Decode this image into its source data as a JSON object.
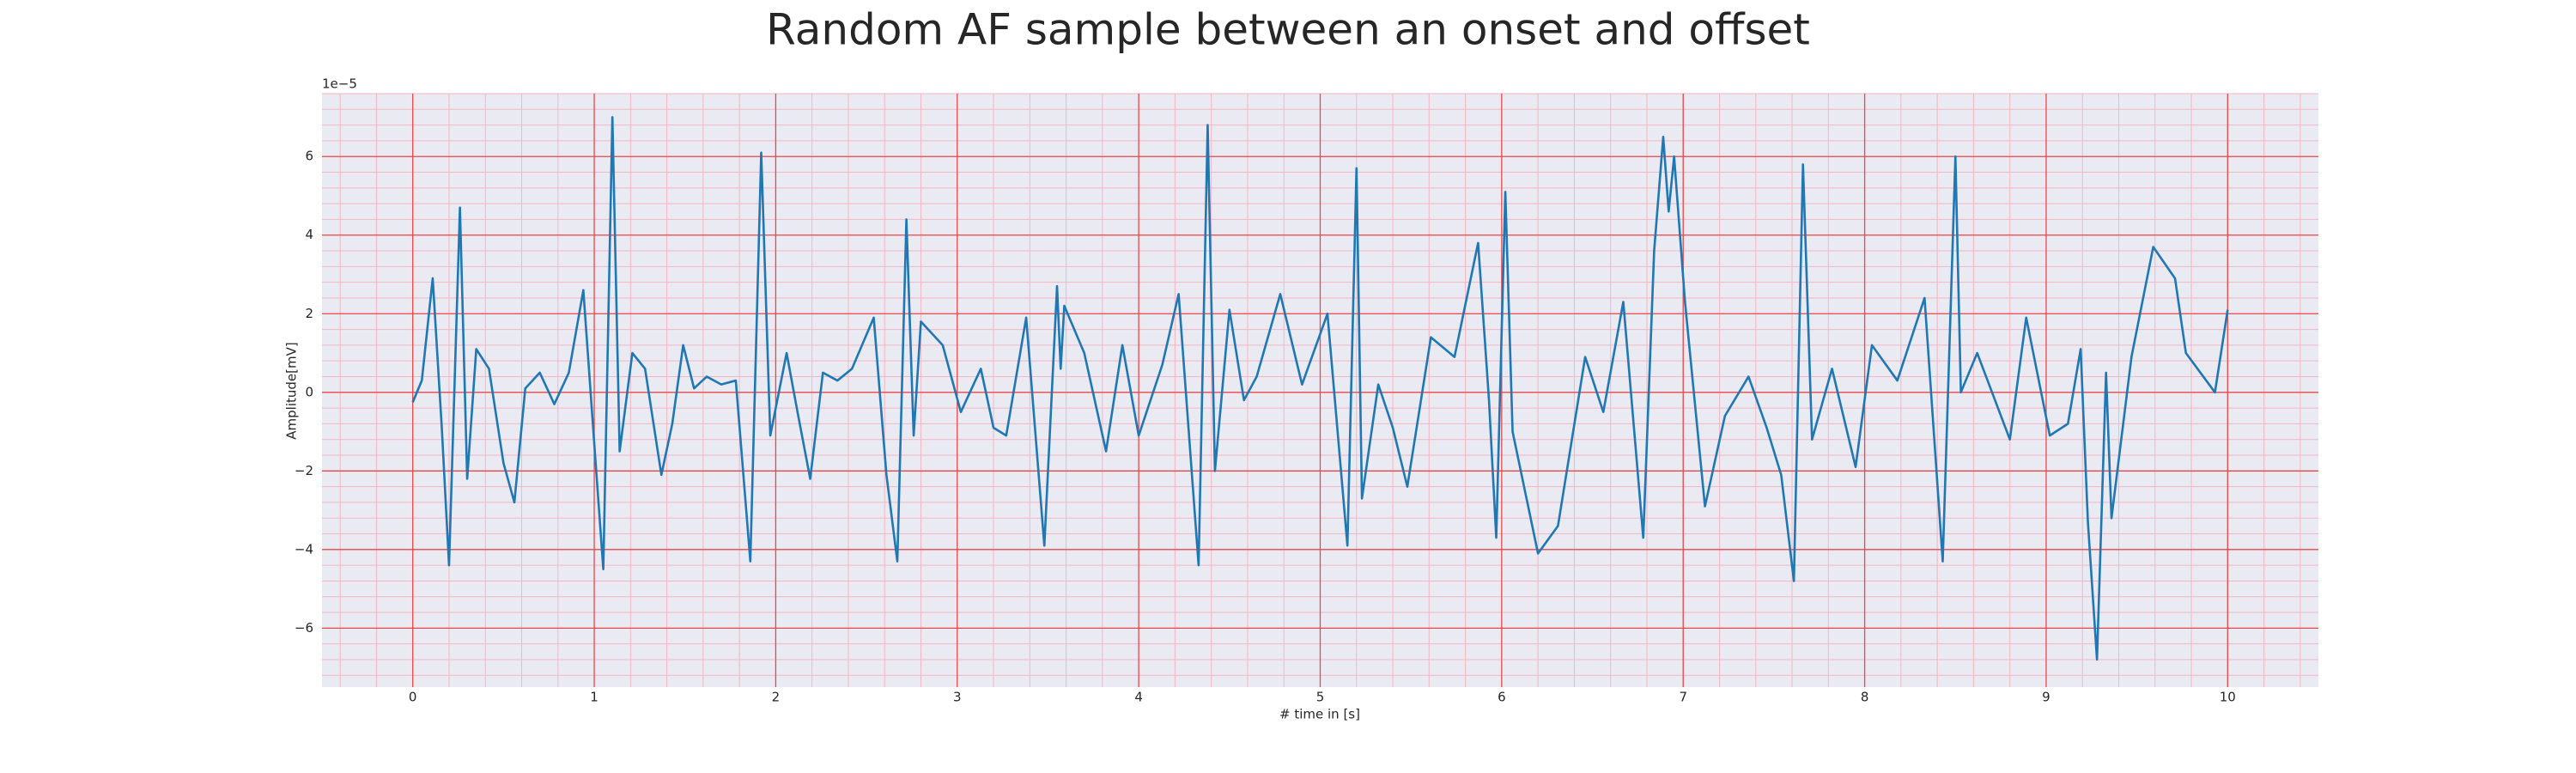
{
  "chart_data": {
    "type": "line",
    "title": "Random AF sample between an onset and offset",
    "xlabel": "# time in [s]",
    "ylabel": "Amplitude[mV]",
    "y_offset_label": "1e−5",
    "x": [
      0,
      0.05,
      0.11,
      0.16,
      0.2,
      0.26,
      0.3,
      0.35,
      0.42,
      0.5,
      0.56,
      0.62,
      0.7,
      0.78,
      0.86,
      0.94,
      1.0,
      1.05,
      1.1,
      1.14,
      1.21,
      1.28,
      1.37,
      1.43,
      1.49,
      1.55,
      1.62,
      1.7,
      1.78,
      1.86,
      1.92,
      1.97,
      2.06,
      2.12,
      2.19,
      2.26,
      2.34,
      2.42,
      2.54,
      2.61,
      2.67,
      2.72,
      2.76,
      2.8,
      2.92,
      3.02,
      3.13,
      3.2,
      3.27,
      3.38,
      3.48,
      3.55,
      3.57,
      3.59,
      3.7,
      3.82,
      3.91,
      4.0,
      4.13,
      4.22,
      4.33,
      4.38,
      4.42,
      4.5,
      4.58,
      4.65,
      4.78,
      4.9,
      5.04,
      5.15,
      5.2,
      5.23,
      5.32,
      5.4,
      5.48,
      5.61,
      5.74,
      5.87,
      5.93,
      5.97,
      6.02,
      6.06,
      6.2,
      6.31,
      6.46,
      6.56,
      6.67,
      6.78,
      6.84,
      6.89,
      6.92,
      6.95,
      7.01,
      7.12,
      7.23,
      7.36,
      7.46,
      7.54,
      7.61,
      7.66,
      7.71,
      7.82,
      7.95,
      8.04,
      8.18,
      8.33,
      8.43,
      8.5,
      8.53,
      8.62,
      8.8,
      8.89,
      9.02,
      9.12,
      9.19,
      9.23,
      9.28,
      9.33,
      9.36,
      9.47,
      9.59,
      9.71,
      9.77,
      9.93,
      10.0
    ],
    "values": [
      -0.25,
      0.3,
      2.9,
      -0.9,
      -4.4,
      4.7,
      -2.2,
      1.1,
      0.6,
      -1.8,
      -2.8,
      0.1,
      0.5,
      -0.3,
      0.5,
      2.6,
      -1.3,
      -4.5,
      7.0,
      -1.5,
      1.0,
      0.6,
      -2.1,
      -0.8,
      1.2,
      0.1,
      0.4,
      0.2,
      0.3,
      -4.3,
      6.1,
      -1.1,
      1.0,
      -0.5,
      -2.2,
      0.5,
      0.3,
      0.6,
      1.9,
      -2.1,
      -4.3,
      4.4,
      -1.1,
      1.8,
      1.2,
      -0.5,
      0.6,
      -0.9,
      -1.1,
      1.9,
      -3.9,
      2.7,
      0.6,
      2.2,
      1.0,
      -1.5,
      1.2,
      -1.1,
      0.7,
      2.5,
      -4.4,
      6.8,
      -2.0,
      2.1,
      -0.2,
      0.4,
      2.5,
      0.2,
      2.0,
      -3.9,
      5.7,
      -2.7,
      0.2,
      -0.9,
      -2.4,
      1.4,
      0.9,
      3.8,
      -0.2,
      -3.7,
      5.1,
      -1.0,
      -4.1,
      -3.4,
      0.9,
      -0.5,
      2.3,
      -3.7,
      3.6,
      6.5,
      4.6,
      6.0,
      2.3,
      -2.9,
      -0.6,
      0.4,
      -0.9,
      -2.1,
      -4.8,
      5.8,
      -1.2,
      0.6,
      -1.9,
      1.2,
      0.3,
      2.4,
      -4.3,
      6.0,
      0.0,
      1.0,
      -1.2,
      1.9,
      -1.1,
      -0.8,
      1.1,
      -3.3,
      -6.8,
      0.5,
      -3.2,
      0.9,
      3.7,
      2.9,
      1.0,
      0.0,
      2.1
    ],
    "color": "#1f77b4",
    "xlim": [
      -0.5,
      10.5
    ],
    "xticks": [
      0,
      1,
      2,
      3,
      4,
      5,
      6,
      7,
      8,
      9,
      10
    ],
    "ylim": [
      -7.5,
      7.6
    ],
    "yticks": [
      {
        "value": -6,
        "label": "−6"
      },
      {
        "value": -4,
        "label": "−4"
      },
      {
        "value": -2,
        "label": "−2"
      },
      0,
      2,
      4,
      6
    ],
    "grid": true
  }
}
